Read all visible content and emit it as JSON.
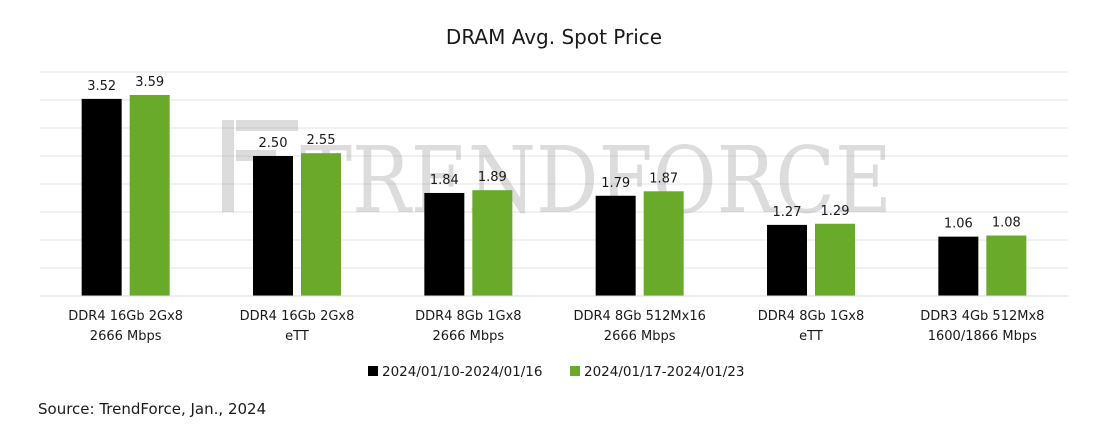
{
  "chart_data": {
    "type": "bar",
    "title": "DRAM Avg. Spot Price",
    "categories": [
      [
        "DDR4 16Gb 2Gx8",
        "2666 Mbps"
      ],
      [
        "DDR4 16Gb 2Gx8",
        "eTT"
      ],
      [
        "DDR4 8Gb 1Gx8",
        "2666 Mbps"
      ],
      [
        "DDR4 8Gb 512Mx16",
        "2666 Mbps"
      ],
      [
        "DDR4 8Gb 1Gx8",
        "eTT"
      ],
      [
        "DDR3 4Gb 512Mx8",
        "1600/1866 Mbps"
      ]
    ],
    "series": [
      {
        "name": "2024/01/10-2024/01/16",
        "color": "#000000",
        "values": [
          3.52,
          2.5,
          1.84,
          1.79,
          1.27,
          1.06
        ]
      },
      {
        "name": "2024/01/17-2024/01/23",
        "color": "#6aaa2a",
        "values": [
          3.59,
          2.55,
          1.89,
          1.87,
          1.29,
          1.08
        ]
      }
    ],
    "value_labels": [
      [
        "3.52",
        "2.50",
        "1.84",
        "1.79",
        "1.27",
        "1.06"
      ],
      [
        "3.59",
        "2.55",
        "1.89",
        "1.87",
        "1.29",
        "1.08"
      ]
    ],
    "ylim": [
      0,
      4
    ],
    "grid": true,
    "legend_position": "bottom-center",
    "watermark": "TRENDFORCE"
  },
  "source": "Source: TrendForce, Jan., 2024"
}
